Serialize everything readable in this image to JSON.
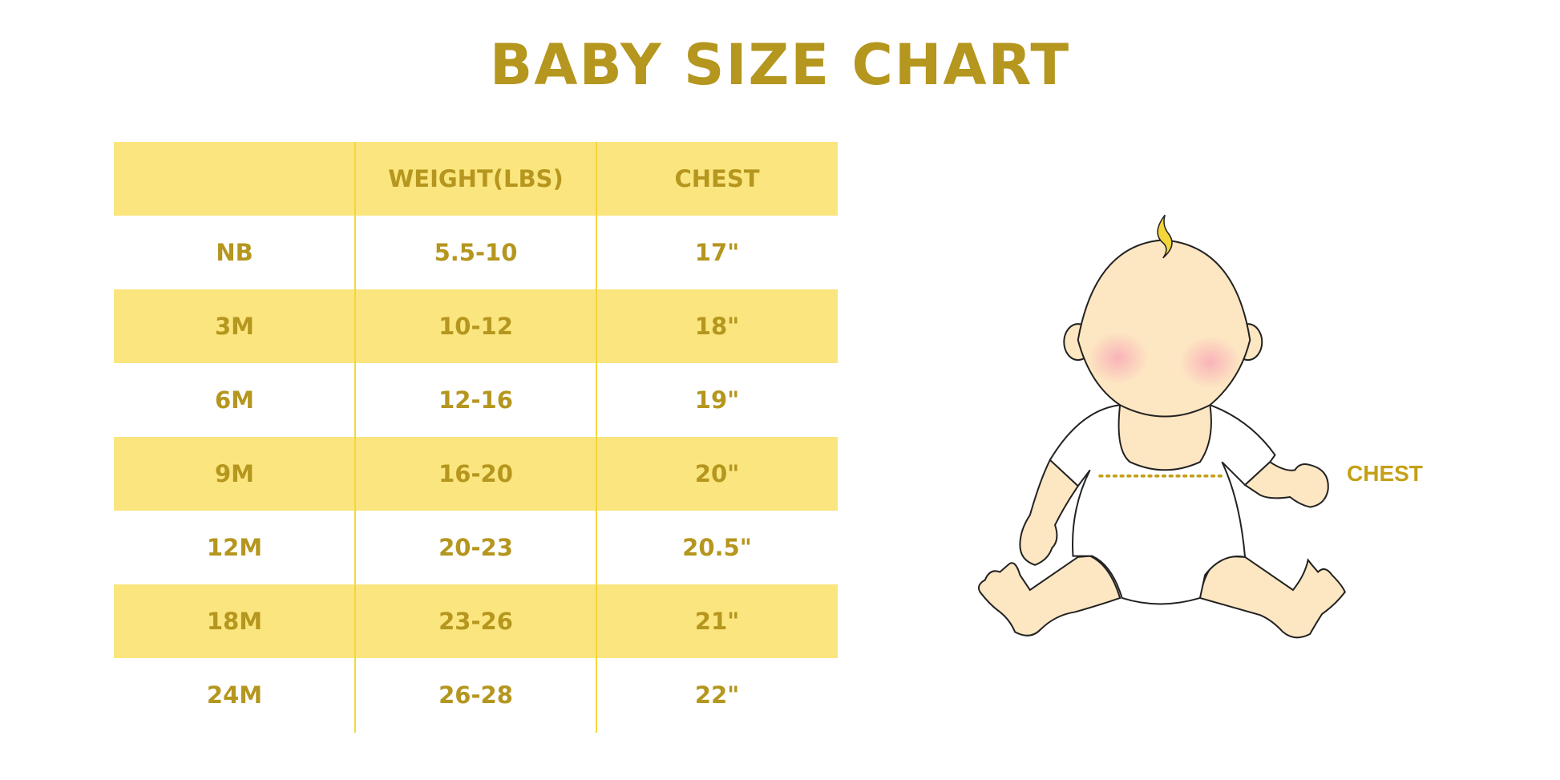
{
  "title": "BABY SIZE CHART",
  "table": {
    "headers": [
      "",
      "WEIGHT(LBS)",
      "CHEST"
    ],
    "rows": [
      [
        "NB",
        "5.5-10",
        "17\""
      ],
      [
        "3M",
        "10-12",
        "18\""
      ],
      [
        "6M",
        "12-16",
        "19\""
      ],
      [
        "9M",
        "16-20",
        "20\""
      ],
      [
        "12M",
        "20-23",
        "20.5\""
      ],
      [
        "18M",
        "23-26",
        "21\""
      ],
      [
        "24M",
        "26-28",
        "22\""
      ]
    ]
  },
  "illustration": {
    "chest_label": "CHEST"
  },
  "colors": {
    "accent_text": "#B5961E",
    "row_fill": "#FBE57E",
    "skin": "#FDE6C2"
  }
}
